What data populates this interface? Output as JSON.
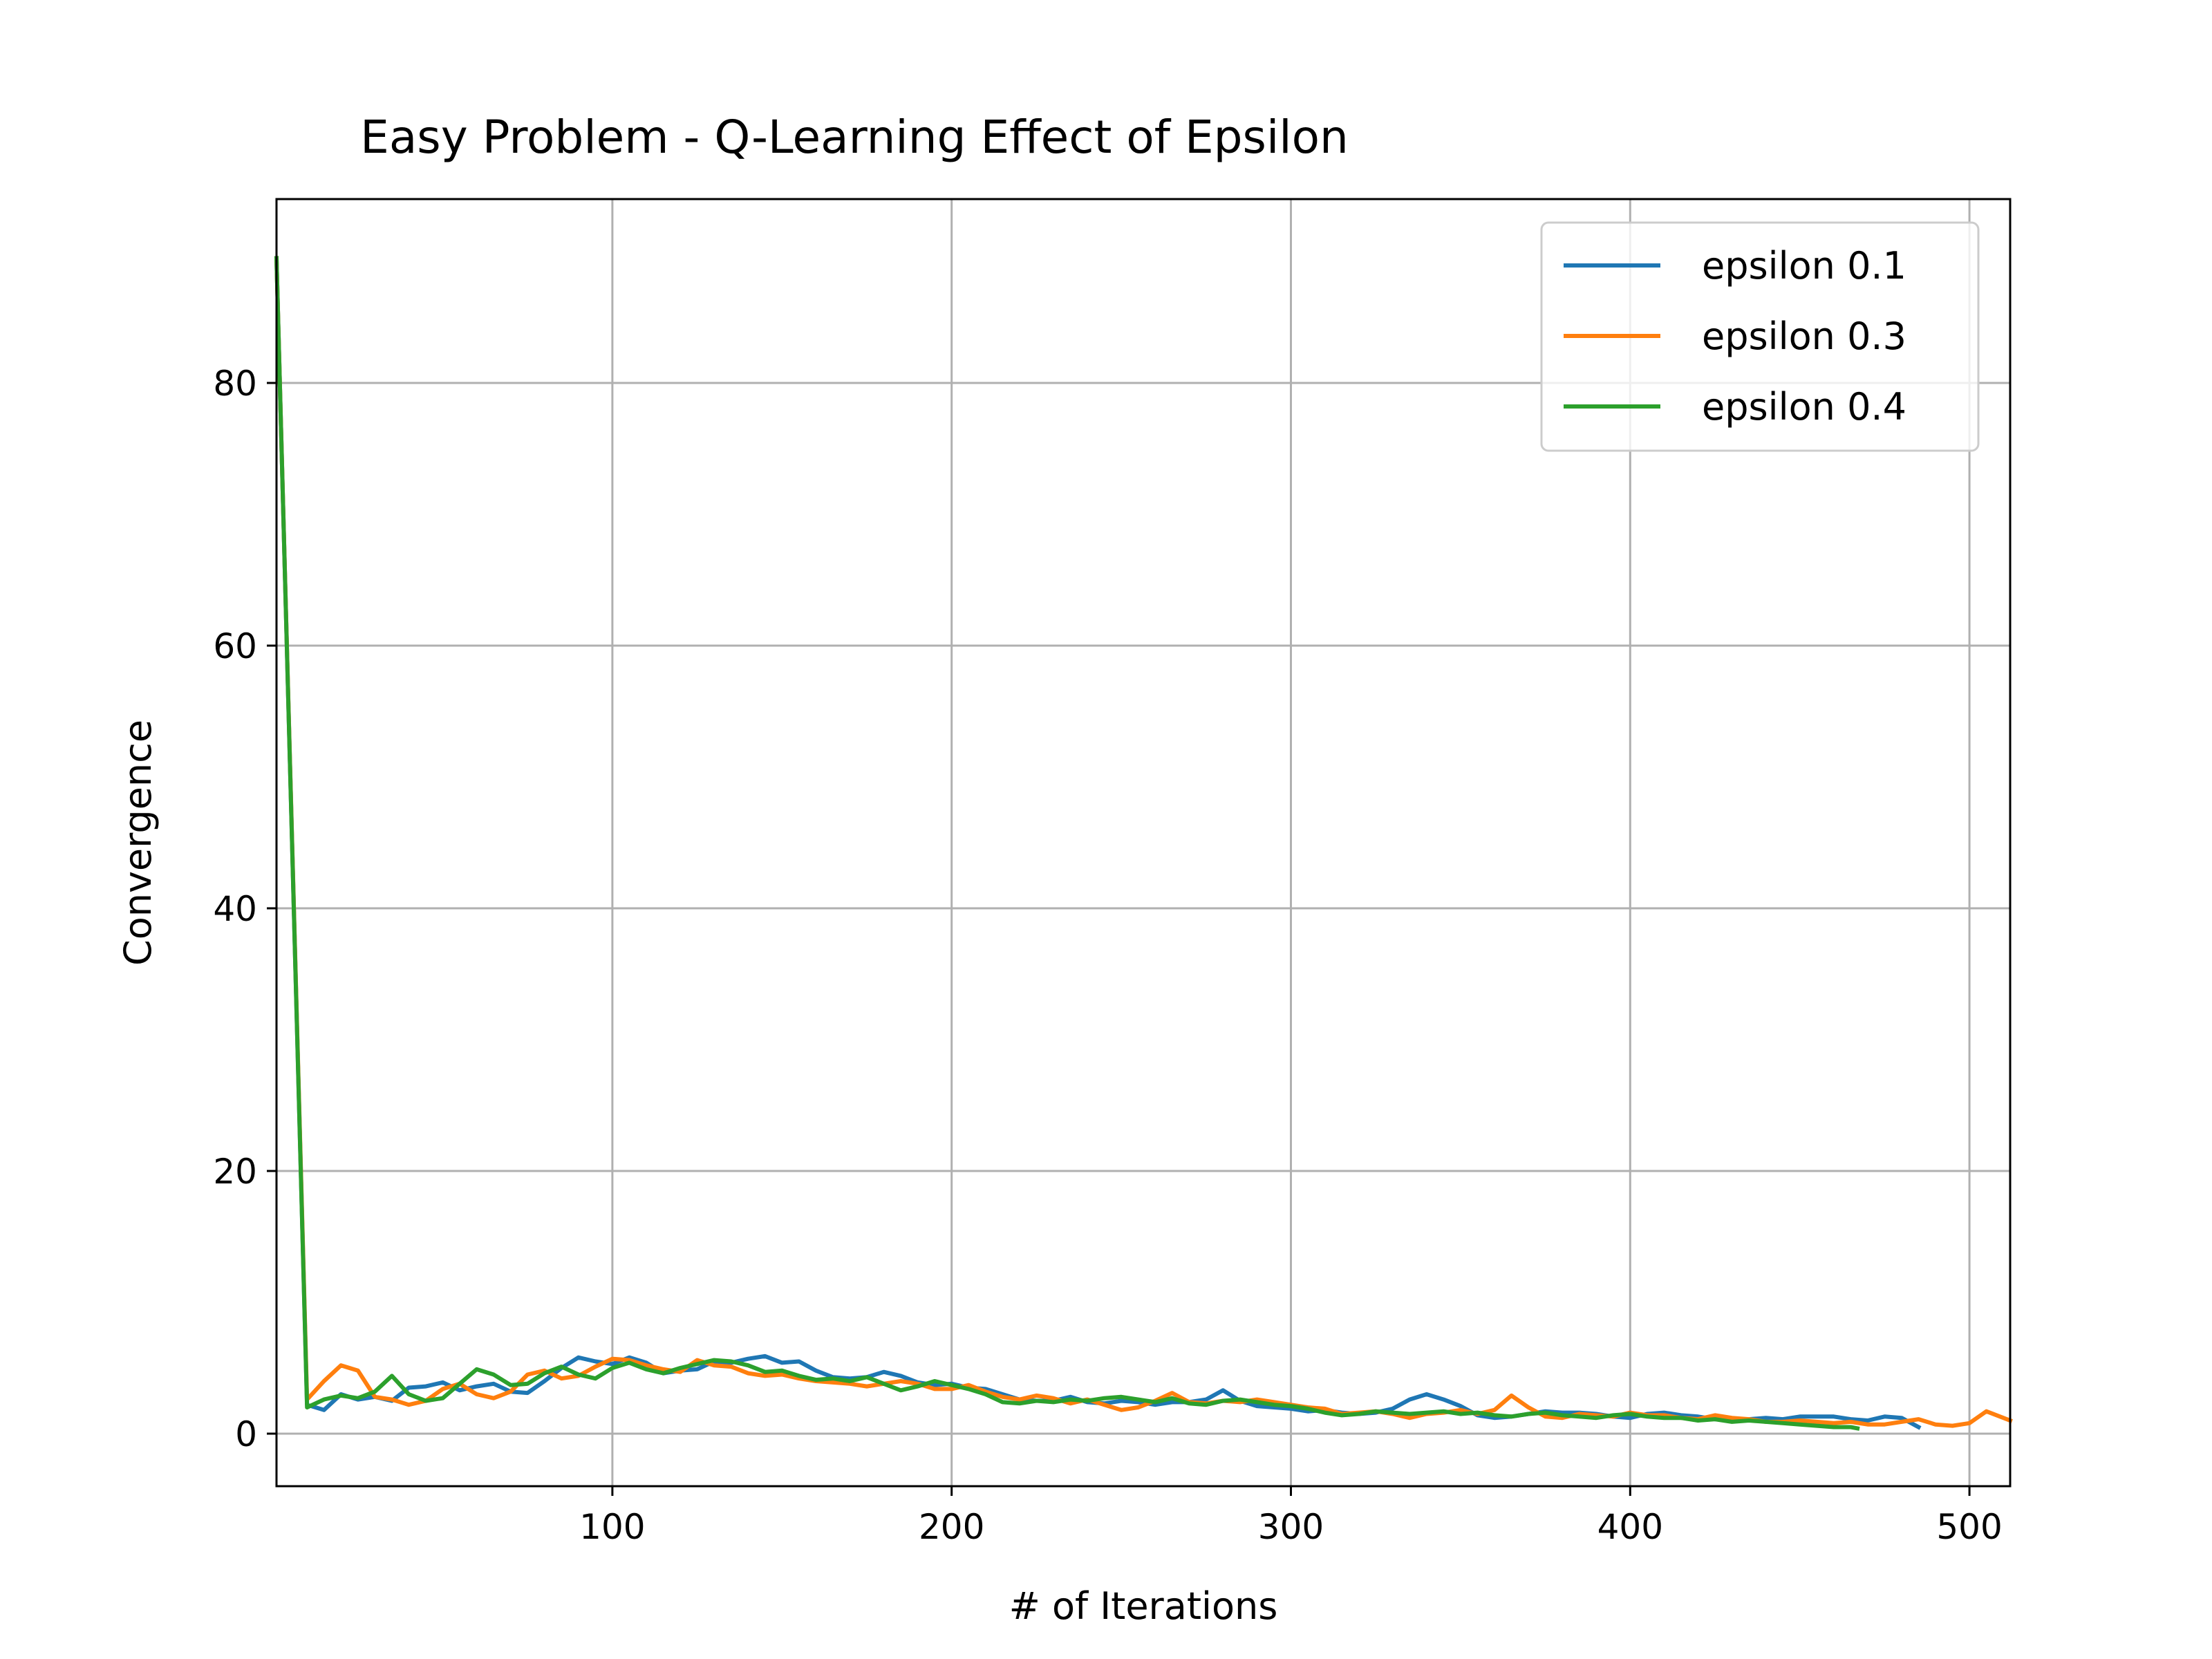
{
  "chart_data": {
    "type": "line",
    "title": "Easy Problem - Q-Learning Effect of Epsilon",
    "xlabel": "# of Iterations",
    "ylabel": "Convergence",
    "xlim": [
      1,
      512
    ],
    "ylim": [
      -4,
      94
    ],
    "xticks": [
      100,
      200,
      300,
      400,
      500
    ],
    "yticks": [
      0,
      20,
      40,
      60,
      80
    ],
    "grid": true,
    "legend_position": "top-right",
    "series": [
      {
        "name": "epsilon 0.1",
        "color": "#1f77b4",
        "points": [
          [
            1,
            89.5
          ],
          [
            10,
            2.2
          ],
          [
            15,
            1.8
          ],
          [
            20,
            3.0
          ],
          [
            25,
            2.6
          ],
          [
            30,
            2.8
          ],
          [
            35,
            2.5
          ],
          [
            40,
            3.5
          ],
          [
            45,
            3.6
          ],
          [
            50,
            3.9
          ],
          [
            55,
            3.3
          ],
          [
            60,
            3.6
          ],
          [
            65,
            3.8
          ],
          [
            70,
            3.2
          ],
          [
            75,
            3.1
          ],
          [
            80,
            4.0
          ],
          [
            85,
            5.0
          ],
          [
            90,
            5.8
          ],
          [
            95,
            5.5
          ],
          [
            100,
            5.3
          ],
          [
            105,
            5.8
          ],
          [
            110,
            5.4
          ],
          [
            115,
            4.6
          ],
          [
            120,
            4.8
          ],
          [
            125,
            4.9
          ],
          [
            130,
            5.5
          ],
          [
            135,
            5.4
          ],
          [
            140,
            5.7
          ],
          [
            145,
            5.9
          ],
          [
            150,
            5.4
          ],
          [
            155,
            5.5
          ],
          [
            160,
            4.8
          ],
          [
            165,
            4.3
          ],
          [
            170,
            4.2
          ],
          [
            175,
            4.3
          ],
          [
            180,
            4.7
          ],
          [
            185,
            4.4
          ],
          [
            190,
            3.9
          ],
          [
            195,
            3.7
          ],
          [
            200,
            3.8
          ],
          [
            205,
            3.5
          ],
          [
            210,
            3.4
          ],
          [
            215,
            3.0
          ],
          [
            220,
            2.6
          ],
          [
            225,
            2.5
          ],
          [
            230,
            2.5
          ],
          [
            235,
            2.8
          ],
          [
            240,
            2.4
          ],
          [
            245,
            2.3
          ],
          [
            250,
            2.5
          ],
          [
            255,
            2.4
          ],
          [
            260,
            2.2
          ],
          [
            265,
            2.4
          ],
          [
            270,
            2.4
          ],
          [
            275,
            2.6
          ],
          [
            280,
            3.3
          ],
          [
            285,
            2.5
          ],
          [
            290,
            2.1
          ],
          [
            295,
            2.0
          ],
          [
            300,
            1.9
          ],
          [
            305,
            1.7
          ],
          [
            310,
            1.8
          ],
          [
            315,
            1.6
          ],
          [
            320,
            1.5
          ],
          [
            325,
            1.6
          ],
          [
            330,
            1.9
          ],
          [
            335,
            2.6
          ],
          [
            340,
            3.0
          ],
          [
            345,
            2.6
          ],
          [
            350,
            2.1
          ],
          [
            355,
            1.4
          ],
          [
            360,
            1.2
          ],
          [
            365,
            1.3
          ],
          [
            370,
            1.5
          ],
          [
            375,
            1.7
          ],
          [
            380,
            1.6
          ],
          [
            385,
            1.6
          ],
          [
            390,
            1.5
          ],
          [
            395,
            1.3
          ],
          [
            400,
            1.2
          ],
          [
            405,
            1.5
          ],
          [
            410,
            1.6
          ],
          [
            415,
            1.4
          ],
          [
            420,
            1.3
          ],
          [
            425,
            1.1
          ],
          [
            430,
            1.0
          ],
          [
            435,
            1.1
          ],
          [
            440,
            1.2
          ],
          [
            445,
            1.1
          ],
          [
            450,
            1.3
          ],
          [
            455,
            1.3
          ],
          [
            460,
            1.3
          ],
          [
            465,
            1.1
          ],
          [
            470,
            1.0
          ],
          [
            475,
            1.3
          ],
          [
            480,
            1.2
          ],
          [
            485,
            0.5
          ]
        ]
      },
      {
        "name": "epsilon 0.3",
        "color": "#ff7f0e",
        "points": [
          [
            1,
            89.5
          ],
          [
            10,
            2.6
          ],
          [
            15,
            4.0
          ],
          [
            20,
            5.2
          ],
          [
            25,
            4.8
          ],
          [
            30,
            2.8
          ],
          [
            35,
            2.6
          ],
          [
            40,
            2.2
          ],
          [
            45,
            2.5
          ],
          [
            50,
            3.4
          ],
          [
            55,
            3.8
          ],
          [
            60,
            3.0
          ],
          [
            65,
            2.7
          ],
          [
            70,
            3.2
          ],
          [
            75,
            4.5
          ],
          [
            80,
            4.8
          ],
          [
            85,
            4.2
          ],
          [
            90,
            4.4
          ],
          [
            95,
            5.1
          ],
          [
            100,
            5.7
          ],
          [
            105,
            5.6
          ],
          [
            110,
            5.2
          ],
          [
            115,
            4.9
          ],
          [
            120,
            4.7
          ],
          [
            125,
            5.6
          ],
          [
            130,
            5.2
          ],
          [
            135,
            5.1
          ],
          [
            140,
            4.6
          ],
          [
            145,
            4.4
          ],
          [
            150,
            4.5
          ],
          [
            155,
            4.2
          ],
          [
            160,
            4.0
          ],
          [
            165,
            3.9
          ],
          [
            170,
            3.8
          ],
          [
            175,
            3.6
          ],
          [
            180,
            3.8
          ],
          [
            185,
            4.0
          ],
          [
            190,
            3.8
          ],
          [
            195,
            3.4
          ],
          [
            200,
            3.4
          ],
          [
            205,
            3.7
          ],
          [
            210,
            3.2
          ],
          [
            215,
            2.8
          ],
          [
            220,
            2.6
          ],
          [
            225,
            2.9
          ],
          [
            230,
            2.7
          ],
          [
            235,
            2.3
          ],
          [
            240,
            2.6
          ],
          [
            245,
            2.2
          ],
          [
            250,
            1.8
          ],
          [
            255,
            2.0
          ],
          [
            260,
            2.5
          ],
          [
            265,
            3.1
          ],
          [
            270,
            2.4
          ],
          [
            275,
            2.3
          ],
          [
            280,
            2.5
          ],
          [
            285,
            2.4
          ],
          [
            290,
            2.6
          ],
          [
            295,
            2.4
          ],
          [
            300,
            2.2
          ],
          [
            305,
            2.0
          ],
          [
            310,
            1.9
          ],
          [
            315,
            1.5
          ],
          [
            320,
            1.6
          ],
          [
            325,
            1.7
          ],
          [
            330,
            1.5
          ],
          [
            335,
            1.2
          ],
          [
            340,
            1.5
          ],
          [
            345,
            1.6
          ],
          [
            350,
            1.8
          ],
          [
            355,
            1.5
          ],
          [
            360,
            1.8
          ],
          [
            365,
            2.9
          ],
          [
            370,
            2.0
          ],
          [
            375,
            1.3
          ],
          [
            380,
            1.2
          ],
          [
            385,
            1.5
          ],
          [
            390,
            1.4
          ],
          [
            395,
            1.3
          ],
          [
            400,
            1.6
          ],
          [
            405,
            1.4
          ],
          [
            410,
            1.4
          ],
          [
            415,
            1.2
          ],
          [
            420,
            1.1
          ],
          [
            425,
            1.4
          ],
          [
            430,
            1.2
          ],
          [
            435,
            1.1
          ],
          [
            440,
            0.9
          ],
          [
            445,
            0.9
          ],
          [
            450,
            1.0
          ],
          [
            455,
            0.9
          ],
          [
            460,
            0.8
          ],
          [
            465,
            0.9
          ],
          [
            470,
            0.7
          ],
          [
            475,
            0.7
          ],
          [
            480,
            0.9
          ],
          [
            485,
            1.1
          ],
          [
            490,
            0.7
          ],
          [
            495,
            0.6
          ],
          [
            500,
            0.8
          ],
          [
            505,
            1.7
          ],
          [
            510,
            1.2
          ],
          [
            512,
            1.0
          ]
        ]
      },
      {
        "name": "epsilon 0.4",
        "color": "#2ca02c",
        "points": [
          [
            1,
            89.5
          ],
          [
            10,
            2.0
          ],
          [
            15,
            2.6
          ],
          [
            20,
            2.9
          ],
          [
            25,
            2.7
          ],
          [
            30,
            3.2
          ],
          [
            35,
            4.4
          ],
          [
            40,
            3.0
          ],
          [
            45,
            2.5
          ],
          [
            50,
            2.7
          ],
          [
            55,
            3.8
          ],
          [
            60,
            4.9
          ],
          [
            65,
            4.5
          ],
          [
            70,
            3.7
          ],
          [
            75,
            3.8
          ],
          [
            80,
            4.6
          ],
          [
            85,
            5.1
          ],
          [
            90,
            4.5
          ],
          [
            95,
            4.2
          ],
          [
            100,
            5.0
          ],
          [
            105,
            5.4
          ],
          [
            110,
            4.9
          ],
          [
            115,
            4.6
          ],
          [
            120,
            5.0
          ],
          [
            125,
            5.3
          ],
          [
            130,
            5.6
          ],
          [
            135,
            5.5
          ],
          [
            140,
            5.2
          ],
          [
            145,
            4.7
          ],
          [
            150,
            4.8
          ],
          [
            155,
            4.4
          ],
          [
            160,
            4.1
          ],
          [
            165,
            4.2
          ],
          [
            170,
            4.0
          ],
          [
            175,
            4.3
          ],
          [
            180,
            3.8
          ],
          [
            185,
            3.3
          ],
          [
            190,
            3.6
          ],
          [
            195,
            4.0
          ],
          [
            200,
            3.7
          ],
          [
            205,
            3.4
          ],
          [
            210,
            3.0
          ],
          [
            215,
            2.4
          ],
          [
            220,
            2.3
          ],
          [
            225,
            2.5
          ],
          [
            230,
            2.4
          ],
          [
            235,
            2.6
          ],
          [
            240,
            2.5
          ],
          [
            245,
            2.7
          ],
          [
            250,
            2.8
          ],
          [
            255,
            2.6
          ],
          [
            260,
            2.4
          ],
          [
            265,
            2.7
          ],
          [
            270,
            2.3
          ],
          [
            275,
            2.2
          ],
          [
            280,
            2.5
          ],
          [
            285,
            2.6
          ],
          [
            290,
            2.4
          ],
          [
            295,
            2.2
          ],
          [
            300,
            2.1
          ],
          [
            305,
            1.9
          ],
          [
            310,
            1.6
          ],
          [
            315,
            1.4
          ],
          [
            320,
            1.5
          ],
          [
            325,
            1.7
          ],
          [
            330,
            1.6
          ],
          [
            335,
            1.5
          ],
          [
            340,
            1.6
          ],
          [
            345,
            1.7
          ],
          [
            350,
            1.5
          ],
          [
            355,
            1.6
          ],
          [
            360,
            1.4
          ],
          [
            365,
            1.3
          ],
          [
            370,
            1.5
          ],
          [
            375,
            1.6
          ],
          [
            380,
            1.4
          ],
          [
            385,
            1.3
          ],
          [
            390,
            1.2
          ],
          [
            395,
            1.4
          ],
          [
            400,
            1.5
          ],
          [
            405,
            1.3
          ],
          [
            410,
            1.2
          ],
          [
            415,
            1.2
          ],
          [
            420,
            1.0
          ],
          [
            425,
            1.1
          ],
          [
            430,
            0.9
          ],
          [
            435,
            1.0
          ],
          [
            440,
            0.9
          ],
          [
            445,
            0.8
          ],
          [
            450,
            0.7
          ],
          [
            455,
            0.6
          ],
          [
            460,
            0.5
          ],
          [
            465,
            0.5
          ],
          [
            467,
            0.4
          ]
        ]
      }
    ]
  }
}
